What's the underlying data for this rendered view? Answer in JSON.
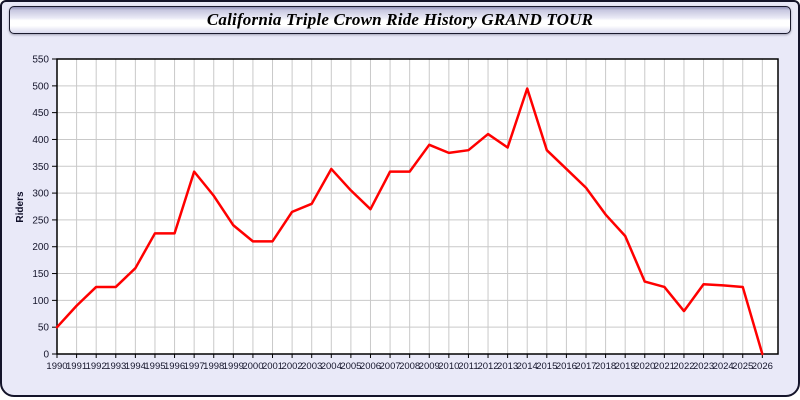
{
  "header": {
    "title": "California Triple Crown Ride History GRAND TOUR"
  },
  "chart_data": {
    "type": "line",
    "title": "California Triple Crown Ride History GRAND TOUR",
    "xlabel": "",
    "ylabel": "Riders",
    "x": [
      1990,
      1991,
      1992,
      1993,
      1994,
      1995,
      1996,
      1997,
      1998,
      1999,
      2000,
      2001,
      2002,
      2003,
      2004,
      2005,
      2006,
      2007,
      2008,
      2009,
      2010,
      2011,
      2012,
      2013,
      2014,
      2015,
      2016,
      2017,
      2018,
      2019,
      2020,
      2021,
      2022,
      2023,
      2024,
      2025,
      2026
    ],
    "series": [
      {
        "name": "Riders",
        "color": "#ff0000",
        "values": [
          50,
          90,
          125,
          125,
          160,
          225,
          225,
          340,
          295,
          240,
          210,
          210,
          265,
          280,
          345,
          305,
          270,
          340,
          340,
          390,
          375,
          380,
          410,
          385,
          495,
          380,
          345,
          310,
          260,
          220,
          135,
          125,
          80,
          130,
          128,
          125,
          0
        ]
      }
    ],
    "ylim": [
      0,
      550
    ],
    "y_tick_step": 50,
    "x_tick_every": 1,
    "grid": true,
    "legend": "none",
    "colors": {
      "line": "#ff0000",
      "grid": "#c9c9c9",
      "axis": "#000000",
      "tick_label": "#16162c",
      "plot_bg": "#ffffff",
      "page_bg": "#e9e9f8"
    }
  }
}
